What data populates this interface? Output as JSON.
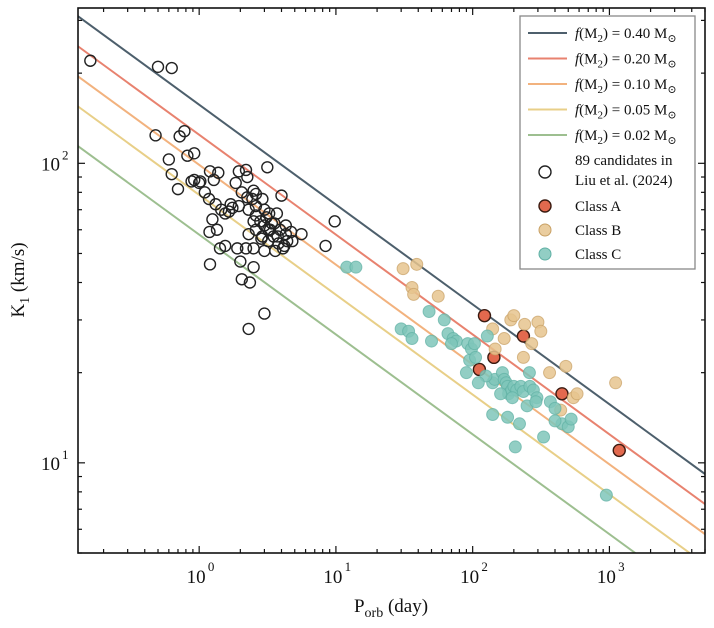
{
  "chart_data": {
    "type": "scatter",
    "xlabel": "P_orb (day)",
    "ylabel": "K_1 (km/s)",
    "xscale": "log",
    "yscale": "log",
    "xlim": [
      0.13,
      5000
    ],
    "ylim": [
      5,
      330
    ],
    "grid": false,
    "legend_position": "top-right",
    "x_ticks": [
      {
        "value": 1,
        "label": "10",
        "exp": "0"
      },
      {
        "value": 10,
        "label": "10",
        "exp": "1"
      },
      {
        "value": 100,
        "label": "10",
        "exp": "2"
      },
      {
        "value": 1000,
        "label": "10",
        "exp": "3"
      }
    ],
    "y_ticks": [
      {
        "value": 10,
        "label": "10",
        "exp": "1"
      },
      {
        "value": 100,
        "label": "10",
        "exp": "2"
      }
    ],
    "lines": [
      {
        "name": "f(M2) = 0.40 M⊙",
        "mass_function": 0.4,
        "color": "#4d5f6c"
      },
      {
        "name": "f(M2) = 0.20 M⊙",
        "mass_function": 0.2,
        "color": "#e8826f"
      },
      {
        "name": "f(M2) = 0.10 M⊙",
        "mass_function": 0.1,
        "color": "#f2b27e"
      },
      {
        "name": "f(M2) = 0.05 M⊙",
        "mass_function": 0.05,
        "color": "#e8cf88"
      },
      {
        "name": "f(M2) = 0.02 M⊙",
        "mass_function": 0.02,
        "color": "#9dbf90"
      }
    ],
    "series": [
      {
        "name": "89 candidates in Liu et al. (2024)",
        "style": "open",
        "edge": "#222222",
        "fill": "#ffffff",
        "points": [
          [
            0.16,
            220
          ],
          [
            0.5,
            210
          ],
          [
            0.63,
            208
          ],
          [
            0.48,
            124
          ],
          [
            0.72,
            123
          ],
          [
            0.78,
            128
          ],
          [
            0.6,
            103
          ],
          [
            0.82,
            106
          ],
          [
            0.92,
            108
          ],
          [
            0.63,
            92
          ],
          [
            0.7,
            82
          ],
          [
            0.88,
            87
          ],
          [
            1.0,
            86
          ],
          [
            1.02,
            87
          ],
          [
            1.2,
            94
          ],
          [
            1.38,
            93
          ],
          [
            1.28,
            88
          ],
          [
            1.1,
            80
          ],
          [
            1.18,
            76
          ],
          [
            1.32,
            73
          ],
          [
            1.45,
            70
          ],
          [
            1.55,
            68
          ],
          [
            1.25,
            65
          ],
          [
            1.35,
            60
          ],
          [
            1.19,
            59
          ],
          [
            1.42,
            52
          ],
          [
            1.55,
            53
          ],
          [
            1.2,
            46
          ],
          [
            1.75,
            71
          ],
          [
            1.85,
            86
          ],
          [
            1.95,
            94
          ],
          [
            2.2,
            95
          ],
          [
            2.05,
            80
          ],
          [
            2.25,
            77
          ],
          [
            2.5,
            81
          ],
          [
            2.45,
            76
          ],
          [
            2.6,
            79
          ],
          [
            2.9,
            76
          ],
          [
            3.15,
            97
          ],
          [
            1.95,
            72
          ],
          [
            2.3,
            70
          ],
          [
            2.6,
            67
          ],
          [
            2.8,
            64
          ],
          [
            3.1,
            66
          ],
          [
            3.4,
            63
          ],
          [
            3.7,
            68
          ],
          [
            4.0,
            78
          ],
          [
            2.6,
            60
          ],
          [
            2.3,
            58
          ],
          [
            2.85,
            56
          ],
          [
            3.2,
            55
          ],
          [
            3.5,
            57
          ],
          [
            3.8,
            54
          ],
          [
            4.1,
            52
          ],
          [
            4.4,
            55
          ],
          [
            4.8,
            55
          ],
          [
            5.6,
            58
          ],
          [
            3.0,
            62
          ],
          [
            3.3,
            60
          ],
          [
            3.9,
            60
          ],
          [
            4.3,
            62
          ],
          [
            2.2,
            52
          ],
          [
            2.5,
            52
          ],
          [
            3.0,
            51
          ],
          [
            3.6,
            51
          ],
          [
            2.5,
            45
          ],
          [
            2.0,
            47
          ],
          [
            1.9,
            52
          ],
          [
            2.5,
            64
          ],
          [
            3.0,
            70
          ],
          [
            3.2,
            60
          ],
          [
            3.55,
            63
          ],
          [
            4.3,
            58
          ],
          [
            4.7,
            59
          ],
          [
            2.05,
            41
          ],
          [
            2.35,
            40
          ],
          [
            2.3,
            28
          ],
          [
            3.0,
            31.5
          ],
          [
            9.8,
            64
          ],
          [
            8.4,
            53
          ],
          [
            2.6,
            72
          ],
          [
            2.25,
            90
          ],
          [
            1.65,
            69
          ],
          [
            2.9,
            57
          ],
          [
            3.25,
            68
          ],
          [
            3.75,
            57
          ],
          [
            4.2,
            53
          ],
          [
            1.7,
            73
          ],
          [
            0.92,
            88
          ]
        ]
      },
      {
        "name": "Class A",
        "style": "filled",
        "edge": "#3a1a10",
        "fill": "#e2694e",
        "points": [
          [
            122,
            31
          ],
          [
            235,
            26.5
          ],
          [
            112,
            20.5
          ],
          [
            143,
            22.5
          ],
          [
            450,
            17
          ],
          [
            1180,
            11
          ]
        ]
      },
      {
        "name": "Class B",
        "style": "filled",
        "edge": "#c8a064",
        "fill": "#e6c48e",
        "points": [
          [
            31,
            44.5
          ],
          [
            39,
            46
          ],
          [
            36,
            38.5
          ],
          [
            37,
            36.5
          ],
          [
            56,
            36
          ],
          [
            140,
            28
          ],
          [
            146,
            24
          ],
          [
            190,
            30
          ],
          [
            200,
            31
          ],
          [
            240,
            29
          ],
          [
            270,
            25
          ],
          [
            300,
            29.5
          ],
          [
            315,
            27.5
          ],
          [
            235,
            22.5
          ],
          [
            365,
            20
          ],
          [
            480,
            21
          ],
          [
            440,
            15
          ],
          [
            545,
            16.5
          ],
          [
            580,
            17
          ],
          [
            1110,
            18.5
          ],
          [
            170,
            26
          ]
        ]
      },
      {
        "name": "Class C",
        "style": "filled",
        "edge": "#5fb0a4",
        "fill": "#7fc6ba",
        "points": [
          [
            12,
            45
          ],
          [
            14,
            45
          ],
          [
            30,
            28
          ],
          [
            34,
            27.5
          ],
          [
            36,
            26
          ],
          [
            48,
            32
          ],
          [
            50,
            25.5
          ],
          [
            62,
            30
          ],
          [
            66,
            27
          ],
          [
            72,
            26
          ],
          [
            76,
            25.5
          ],
          [
            92,
            25
          ],
          [
            98,
            24
          ],
          [
            95,
            22
          ],
          [
            103,
            25
          ],
          [
            128,
            26.5
          ],
          [
            140,
            18.5
          ],
          [
            145,
            19
          ],
          [
            165,
            20
          ],
          [
            170,
            19
          ],
          [
            176,
            18.5
          ],
          [
            180,
            18
          ],
          [
            183,
            17
          ],
          [
            193,
            17.5
          ],
          [
            200,
            18
          ],
          [
            210,
            17.5
          ],
          [
            225,
            18
          ],
          [
            235,
            17.3
          ],
          [
            250,
            15.5
          ],
          [
            262,
            18
          ],
          [
            278,
            17.5
          ],
          [
            295,
            16.5
          ],
          [
            370,
            16
          ],
          [
            400,
            15.2
          ],
          [
            450,
            13.5
          ],
          [
            500,
            13.2
          ],
          [
            525,
            14
          ],
          [
            260,
            20
          ],
          [
            140,
            14.5
          ],
          [
            180,
            14.2
          ],
          [
            220,
            13.5
          ],
          [
            205,
            11.3
          ],
          [
            330,
            12.2
          ],
          [
            400,
            13.8
          ],
          [
            950,
            7.8
          ],
          [
            195,
            16.5
          ],
          [
            160,
            17
          ],
          [
            125,
            19.5
          ],
          [
            110,
            18.5
          ],
          [
            290,
            16
          ],
          [
            90,
            20
          ],
          [
            105,
            22.5
          ],
          [
            70,
            25
          ]
        ]
      }
    ]
  }
}
